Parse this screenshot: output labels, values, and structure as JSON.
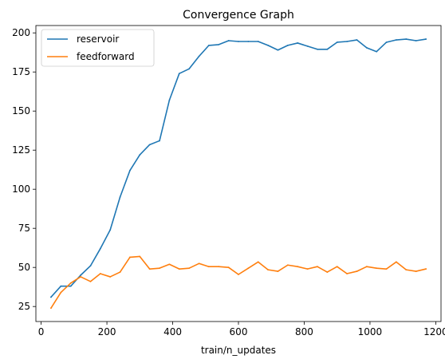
{
  "chart_data": {
    "type": "line",
    "title": "Convergence Graph",
    "xlabel": "train/n_updates",
    "ylabel": "",
    "xlim": [
      -16,
      1216
    ],
    "ylim": [
      15.4,
      204.7
    ],
    "xticks": [
      0,
      200,
      400,
      600,
      800,
      1000,
      1200
    ],
    "xtick_labels": [
      "0",
      "200",
      "400",
      "600",
      "800",
      "1000",
      "1200"
    ],
    "yticks": [
      25,
      50,
      75,
      100,
      125,
      150,
      175,
      200
    ],
    "ytick_labels": [
      "25",
      "50",
      "75",
      "100",
      "125",
      "150",
      "175",
      "200"
    ],
    "grid": false,
    "legend_position": "top-left",
    "x": [
      30,
      60,
      90,
      120,
      150,
      180,
      210,
      240,
      270,
      300,
      330,
      360,
      390,
      420,
      450,
      480,
      510,
      540,
      570,
      600,
      630,
      660,
      690,
      720,
      750,
      780,
      810,
      840,
      870,
      900,
      930,
      960,
      990,
      1020,
      1050,
      1080,
      1110,
      1140,
      1170
    ],
    "series": [
      {
        "name": "reservoir",
        "color": "#1f77b4",
        "values": [
          31,
          38,
          38,
          45,
          51,
          62,
          74,
          95,
          112,
          122,
          128.5,
          131,
          157,
          174,
          177,
          185,
          192,
          192.5,
          195,
          194.5,
          194.5,
          194.5,
          192,
          189,
          192,
          193.5,
          191.5,
          189.5,
          189.5,
          194,
          194.5,
          195.5,
          190.5,
          188,
          194,
          195.5,
          196,
          195,
          196
        ]
      },
      {
        "name": "feedforward",
        "color": "#ff7f0e",
        "values": [
          24,
          34,
          40,
          44,
          41,
          46,
          44,
          47,
          56.5,
          57,
          49,
          49.5,
          52,
          49,
          49.5,
          52.5,
          50.5,
          50.5,
          50,
          45.5,
          49.5,
          53.5,
          48.5,
          47.5,
          51.5,
          50.5,
          49,
          50.5,
          47,
          50.5,
          46,
          47.5,
          50.5,
          49.5,
          49,
          53.5,
          48.5,
          47.5,
          49
        ]
      }
    ]
  }
}
